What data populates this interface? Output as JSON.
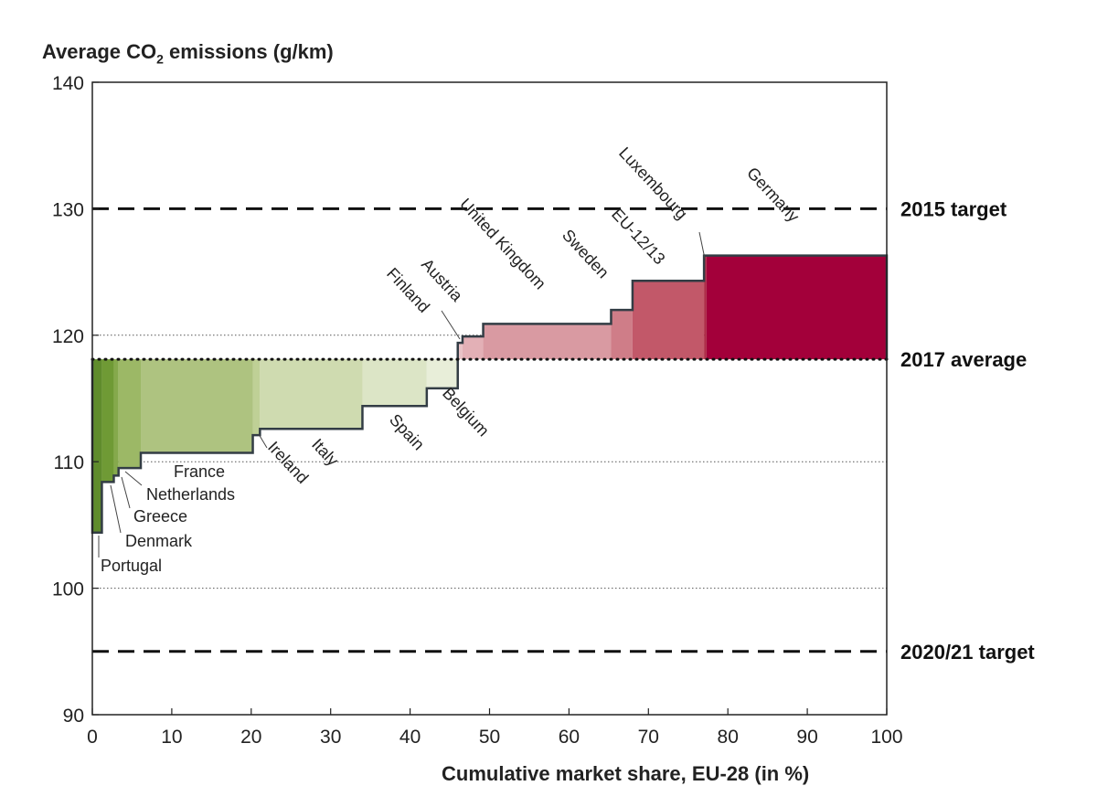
{
  "chart_data": {
    "type": "area",
    "ylabel_prefix": "Average CO",
    "ylabel_sub": "2",
    "ylabel_suffix": " emissions (g/km)",
    "xlabel": "Cumulative market share, EU-28 (in %)",
    "xlim": [
      0,
      100
    ],
    "ylim": [
      90,
      140
    ],
    "xticks": [
      "0",
      "10",
      "20",
      "30",
      "40",
      "50",
      "60",
      "70",
      "80",
      "90",
      "100"
    ],
    "yticks": [
      "90",
      "100",
      "110",
      "120",
      "130",
      "140"
    ],
    "baseline_value": 118.1,
    "segments": [
      {
        "country": "Portugal",
        "x0": 0.0,
        "x1": 1.2,
        "y": 104.4,
        "color": "#5f8c2c"
      },
      {
        "country": "Denmark",
        "x0": 1.2,
        "x1": 2.7,
        "y": 108.4,
        "color": "#6f9a35"
      },
      {
        "country": "Greece",
        "x0": 2.7,
        "x1": 3.3,
        "y": 108.9,
        "color": "#85a94c"
      },
      {
        "country": "Netherlands",
        "x0": 3.3,
        "x1": 6.1,
        "y": 109.5,
        "color": "#9cb866"
      },
      {
        "country": "France",
        "x0": 6.1,
        "x1": 20.2,
        "y": 110.7,
        "color": "#aec380"
      },
      {
        "country": "Ireland",
        "x0": 20.2,
        "x1": 21.1,
        "y": 112.1,
        "color": "#bfd096"
      },
      {
        "country": "Italy",
        "x0": 21.1,
        "x1": 34.0,
        "y": 112.6,
        "color": "#cfdbb0"
      },
      {
        "country": "Spain",
        "x0": 34.0,
        "x1": 42.1,
        "y": 114.4,
        "color": "#dce5c6"
      },
      {
        "country": "Belgium",
        "x0": 42.1,
        "x1": 46.0,
        "y": 115.8,
        "color": "#e8eed9"
      },
      {
        "country": "Finland",
        "x0": 46.0,
        "x1": 46.6,
        "y": 119.4,
        "color": "#e9c3c7"
      },
      {
        "country": "Austria",
        "x0": 46.6,
        "x1": 49.2,
        "y": 119.9,
        "color": "#e3b0b6"
      },
      {
        "country": "United Kingdom",
        "x0": 49.2,
        "x1": 65.3,
        "y": 120.9,
        "color": "#d99aa2"
      },
      {
        "country": "Sweden",
        "x0": 65.3,
        "x1": 68.0,
        "y": 122.0,
        "color": "#cf7d88"
      },
      {
        "country": "EU-12/13",
        "x0": 68.0,
        "x1": 77.0,
        "y": 124.3,
        "color": "#c25869"
      },
      {
        "country": "Luxembourg",
        "x0": 77.0,
        "x1": 77.3,
        "y": 126.3,
        "color": "#ad2a45"
      },
      {
        "country": "Germany",
        "x0": 77.3,
        "x1": 100.0,
        "y": 126.3,
        "color": "#a3003a"
      }
    ],
    "reference_lines": [
      {
        "label": "2015 target",
        "value": 130,
        "style": "dashed"
      },
      {
        "label": "2017 average",
        "value": 118.1,
        "style": "dotted"
      },
      {
        "label": "2020/21 target",
        "value": 95,
        "style": "dashed"
      }
    ],
    "grid": "dotted lines at 100, 110, 120"
  }
}
